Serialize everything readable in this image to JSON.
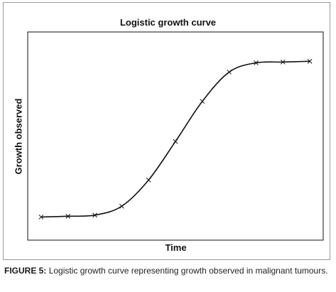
{
  "chart_data": {
    "type": "line",
    "title": "Logistic growth curve",
    "xlabel": "Time",
    "ylabel": "Growth observed",
    "x": [
      1,
      2,
      3,
      4,
      5,
      6,
      7,
      8,
      9,
      10,
      11
    ],
    "series": [
      {
        "values": [
          0.0,
          0.005,
          0.012,
          0.07,
          0.24,
          0.49,
          0.75,
          0.94,
          1.0,
          1.005,
          1.01
        ]
      }
    ],
    "xlim": [
      0.5,
      11.5
    ],
    "ylim": [
      -0.15,
      1.2
    ],
    "grid": false,
    "legend": "none",
    "marker": "x",
    "line_color": "#111111"
  },
  "caption": {
    "label": "FIGURE 5:",
    "text": "Logistic growth curve representing growth observed in malignant tumours."
  }
}
